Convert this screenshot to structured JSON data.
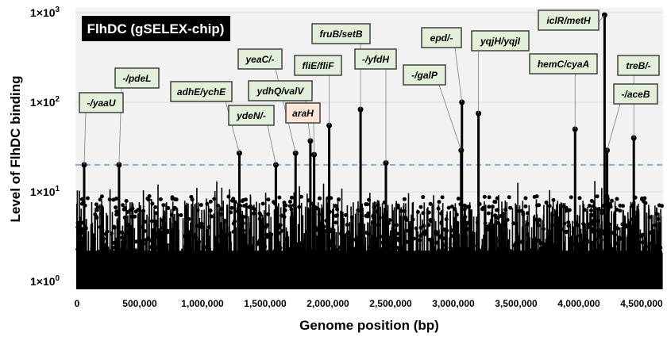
{
  "chart_data": {
    "type": "line",
    "title": "FlhDC (gSELEX-chip)",
    "xlabel": "Genome position (bp)",
    "ylabel": "Level of FlhDC binding",
    "xlim": [
      0,
      4650000
    ],
    "ylim": [
      1,
      1000
    ],
    "yscale": "log",
    "x_ticks": [
      "0",
      "500,000",
      "1,000,000",
      "1,500,000",
      "2,000,000",
      "2,500,000",
      "3,000,000",
      "3,500,000",
      "4,000,000",
      "4,500,000"
    ],
    "y_ticks": [
      {
        "base": "1",
        "exp": "0",
        "value": 1
      },
      {
        "base": "1",
        "exp": "1",
        "value": 10
      },
      {
        "base": "1",
        "exp": "2",
        "value": 100
      },
      {
        "base": "1",
        "exp": "3",
        "value": 1000
      }
    ],
    "grid": true,
    "threshold": 20,
    "colors": {
      "stems": "#000000",
      "threshold": "#5b9bd5",
      "label_box": "#e2f0d9",
      "label_box_highlight": "#fbe5d6",
      "background": "#f2f2f2"
    },
    "peaks": [
      {
        "gene": "-/yaaU",
        "position": 57000,
        "value": 20
      },
      {
        "gene": "-/pdeL",
        "position": 335000,
        "value": 20
      },
      {
        "gene": "adhE/ychE",
        "position": 1294000,
        "value": 27
      },
      {
        "gene": "ydeN/-",
        "position": 1585000,
        "value": 20
      },
      {
        "gene": "yeaC/-",
        "position": 1742000,
        "value": 27
      },
      {
        "gene": "ydhQ/valV",
        "position": 1860000,
        "value": 37
      },
      {
        "gene": "araH",
        "position": 1890000,
        "value": 26,
        "highlight": true
      },
      {
        "gene": "fliE/fliF",
        "position": 2010000,
        "value": 55
      },
      {
        "gene": "fruB/setB",
        "position": 2260000,
        "value": 83
      },
      {
        "gene": "-/yfdH",
        "position": 2462000,
        "value": 21
      },
      {
        "gene": "-/galP",
        "position": 3062000,
        "value": 29
      },
      {
        "gene": "epd/-",
        "position": 3068000,
        "value": 100
      },
      {
        "gene": "yqjH/yqjI",
        "position": 3200000,
        "value": 75
      },
      {
        "gene": "hemC/cyaA",
        "position": 3970000,
        "value": 50
      },
      {
        "gene": "iclR/metH",
        "position": 4205000,
        "value": 940
      },
      {
        "gene": "-/aceB",
        "position": 4225000,
        "value": 29
      },
      {
        "gene": "treB/-",
        "position": 4438000,
        "value": 40
      }
    ]
  }
}
